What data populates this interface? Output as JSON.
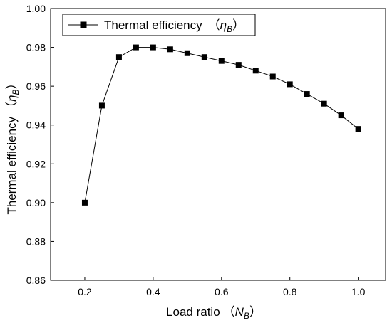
{
  "chart_data": {
    "type": "line",
    "x": [
      0.2,
      0.25,
      0.3,
      0.35,
      0.4,
      0.45,
      0.5,
      0.55,
      0.6,
      0.65,
      0.7,
      0.75,
      0.8,
      0.85,
      0.9,
      0.95,
      1.0
    ],
    "series": [
      {
        "name": "Thermal efficiency",
        "values": [
          0.9,
          0.95,
          0.975,
          0.98,
          0.98,
          0.979,
          0.977,
          0.975,
          0.973,
          0.971,
          0.968,
          0.965,
          0.961,
          0.956,
          0.951,
          0.945,
          0.938
        ]
      }
    ],
    "legend_symbol": "η",
    "legend_symbol_sub": "B",
    "xlabel": "Load ratio",
    "xlabel_symbol": "N",
    "xlabel_symbol_sub": "B",
    "ylabel": "Thermal efficiency",
    "ylabel_symbol": "η",
    "ylabel_symbol_sub": "B",
    "xlim": [
      0.1,
      1.08
    ],
    "ylim": [
      0.86,
      1.0
    ],
    "xticks": [
      0.2,
      0.4,
      0.6,
      0.8,
      1.0
    ],
    "xtick_labels": [
      "0.2",
      "0.4",
      "0.6",
      "0.8",
      "1.0"
    ],
    "yticks": [
      0.86,
      0.88,
      0.9,
      0.92,
      0.94,
      0.96,
      0.98,
      1.0
    ],
    "ytick_labels": [
      "0.86",
      "0.88",
      "0.90",
      "0.92",
      "0.94",
      "0.96",
      "0.98",
      "1.00"
    ],
    "marker": "square",
    "grid": false,
    "legend_position": "top-left",
    "colors": {
      "line": "#000000",
      "marker": "#000000",
      "frame": "#000000"
    }
  }
}
